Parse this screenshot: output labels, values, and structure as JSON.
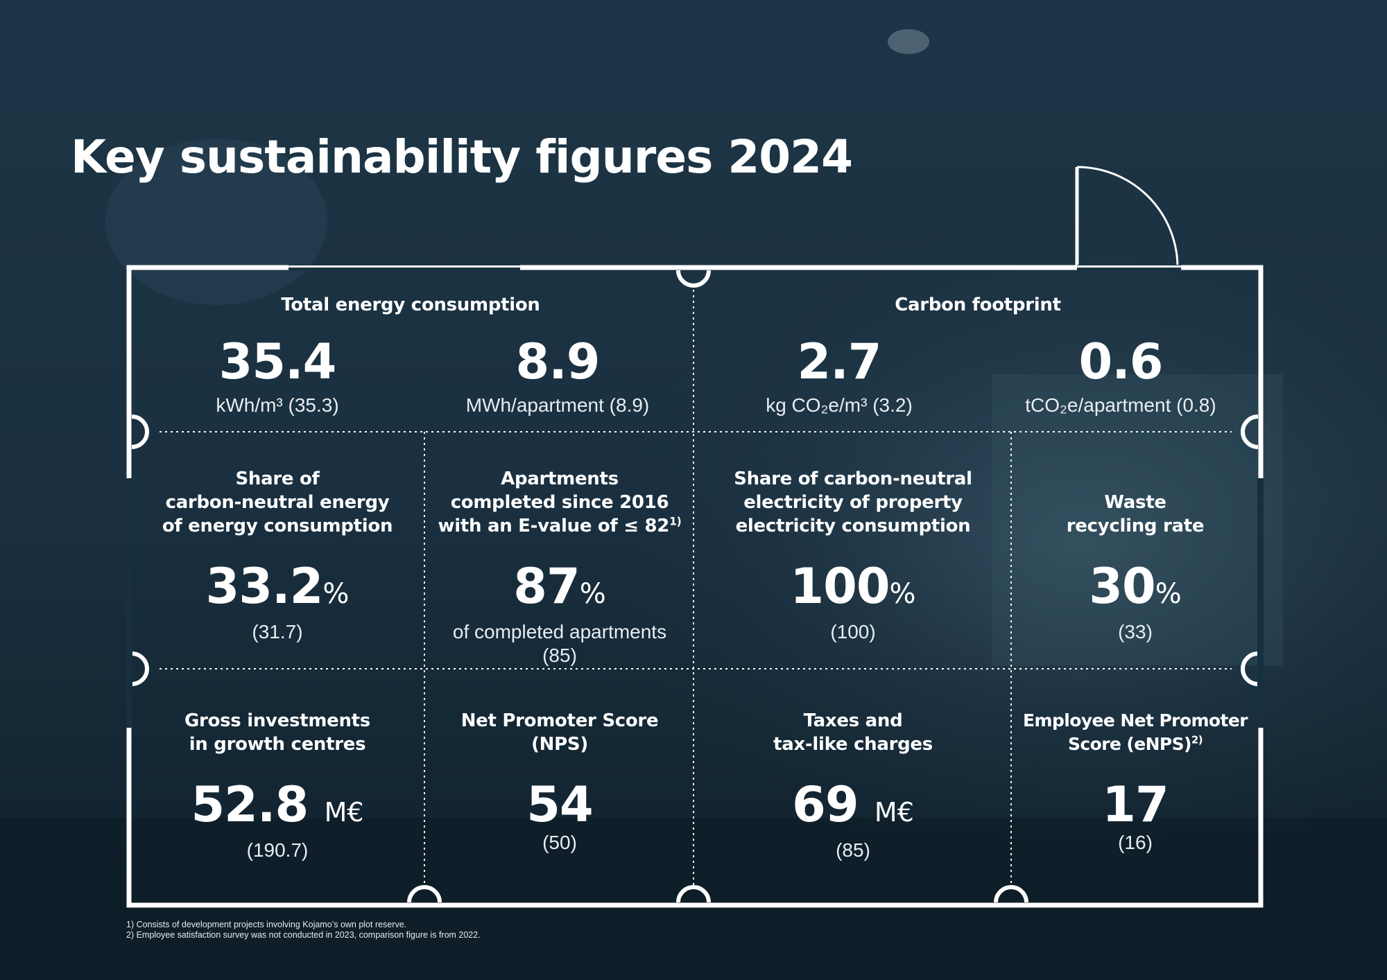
{
  "title": "Key sustainability figures 2024",
  "colors": {
    "background": "#1b3242",
    "text": "#ffffff",
    "frame": "#ffffff"
  },
  "energy": {
    "heading": "Total energy consumption",
    "kwh": {
      "value": "35.4",
      "unit": "kWh/m³ (35.3)"
    },
    "mwh": {
      "value": "8.9",
      "unit": "MWh/apartment (8.9)"
    }
  },
  "carbon": {
    "heading": "Carbon footprint",
    "per_m3": {
      "value": "2.7",
      "unit": "kg CO₂e/m³ (3.2)"
    },
    "per_apartment": {
      "value": "0.6",
      "unit": "tCO₂e/apartment (0.8)"
    }
  },
  "row2": [
    {
      "heading_lines": [
        "Share of",
        "carbon-neutral energy",
        "of energy consumption"
      ],
      "value": "33.2",
      "unit": "%",
      "sub_lines": [
        "(31.7)"
      ]
    },
    {
      "heading_lines": [
        "Apartments",
        "completed since 2016",
        "with an E-value of ≤ 82"
      ],
      "heading_sup": "1)",
      "value": "87",
      "unit": "%",
      "sub_lines": [
        "of completed apartments",
        "(85)"
      ]
    },
    {
      "heading_lines": [
        "Share of carbon-neutral",
        "electricity of property",
        "electricity consumption"
      ],
      "value": "100",
      "unit": "%",
      "sub_lines": [
        "(100)"
      ]
    },
    {
      "heading_lines": [
        "Waste",
        "recycling rate"
      ],
      "value": "30",
      "unit": "%",
      "sub_lines": [
        "(33)"
      ]
    }
  ],
  "row3": [
    {
      "heading_lines": [
        "Gross investments",
        "in growth centres"
      ],
      "value": "52.8",
      "unit": "M€",
      "sub_lines": [
        "(190.7)"
      ]
    },
    {
      "heading_lines": [
        "Net Promoter Score",
        "(NPS)"
      ],
      "value": "54",
      "unit": "",
      "sub_lines": [
        "(50)"
      ]
    },
    {
      "heading_lines": [
        "Taxes and",
        "tax-like charges"
      ],
      "value": "69",
      "unit": "M€",
      "sub_lines": [
        "(85)"
      ]
    },
    {
      "heading_lines": [
        "Employee Net Promoter",
        "Score (eNPS)"
      ],
      "heading_sup": "2)",
      "value": "17",
      "unit": "",
      "sub_lines": [
        "(16)"
      ]
    }
  ],
  "footnotes": [
    "1)   Consists of development projects involving Kojamo’s own plot reserve.",
    "2)   Employee satisfaction survey was not conducted in 2023, comparison figure is from 2022."
  ]
}
